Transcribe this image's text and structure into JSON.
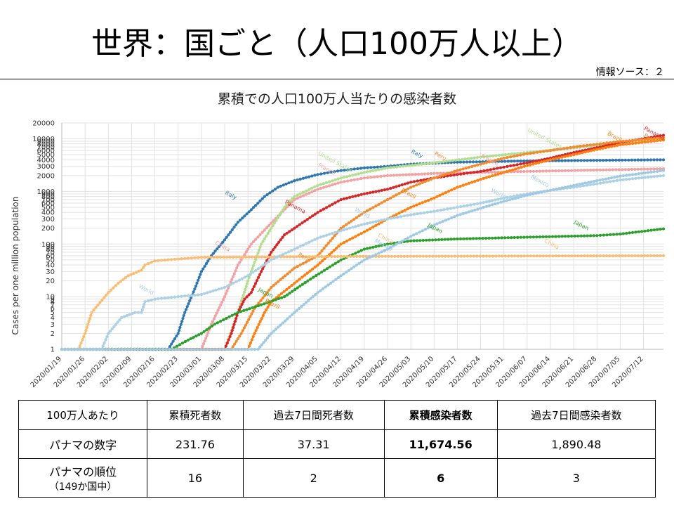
{
  "slide": {
    "title": "世界：国ごと（人口100万人以上）",
    "source": "情報ソース：２"
  },
  "chart_data": {
    "type": "line",
    "title": "累積での人口100万人当たりの感染者数",
    "xlabel": "",
    "ylabel": "Cases per one million population",
    "yscale": "log",
    "ylim": [
      1,
      20000
    ],
    "y_ticks": [
      1,
      2,
      3,
      4,
      5,
      6,
      7,
      8,
      9,
      10,
      20,
      30,
      40,
      50,
      60,
      70,
      80,
      90,
      100,
      200,
      300,
      400,
      500,
      600,
      700,
      800,
      900,
      1000,
      2000,
      3000,
      4000,
      5000,
      6000,
      7000,
      8000,
      9000,
      10000,
      20000
    ],
    "x_range": [
      "2020/01/19",
      "2020/07/18"
    ],
    "x_ticks": [
      "2020/01/19",
      "2020/01/26",
      "2020/02/02",
      "2020/02/09",
      "2020/02/16",
      "2020/02/23",
      "2020/03/01",
      "2020/03/08",
      "2020/03/15",
      "2020/03/22",
      "2020/03/29",
      "2020/04/05",
      "2020/04/12",
      "2020/04/19",
      "2020/04/26",
      "2020/05/03",
      "2020/05/10",
      "2020/05/17",
      "2020/05/24",
      "2020/05/31",
      "2020/06/07",
      "2020/06/14",
      "2020/06/21",
      "2020/06/28",
      "2020/07/05",
      "2020/07/12"
    ],
    "grid": true,
    "series": [
      {
        "name": "Italy",
        "color": "#2f77b0",
        "points": [
          [
            "2020/01/19",
            1
          ],
          [
            "2020/02/20",
            1
          ],
          [
            "2020/02/23",
            2
          ],
          [
            "2020/02/25",
            5
          ],
          [
            "2020/02/28",
            14
          ],
          [
            "2020/03/01",
            30
          ],
          [
            "2020/03/04",
            60
          ],
          [
            "2020/03/08",
            120
          ],
          [
            "2020/03/12",
            260
          ],
          [
            "2020/03/16",
            450
          ],
          [
            "2020/03/20",
            800
          ],
          [
            "2020/03/24",
            1200
          ],
          [
            "2020/03/29",
            1600
          ],
          [
            "2020/04/05",
            2100
          ],
          [
            "2020/04/12",
            2500
          ],
          [
            "2020/04/19",
            2800
          ],
          [
            "2020/04/26",
            3000
          ],
          [
            "2020/05/03",
            3300
          ],
          [
            "2020/05/17",
            3600
          ],
          [
            "2020/06/07",
            3800
          ],
          [
            "2020/07/18",
            4000
          ]
        ],
        "labels": [
          {
            "text": "Italy",
            "x": "2020/03/08",
            "y": 900
          },
          {
            "text": "Italy",
            "x": "2020/05/03",
            "y": 5500
          }
        ]
      },
      {
        "name": "France",
        "color": "#f2a2a2",
        "points": [
          [
            "2020/01/19",
            1
          ],
          [
            "2020/03/01",
            1
          ],
          [
            "2020/03/04",
            3
          ],
          [
            "2020/03/08",
            10
          ],
          [
            "2020/03/12",
            40
          ],
          [
            "2020/03/16",
            100
          ],
          [
            "2020/03/22",
            250
          ],
          [
            "2020/03/29",
            700
          ],
          [
            "2020/04/05",
            1100
          ],
          [
            "2020/04/12",
            1500
          ],
          [
            "2020/04/19",
            1800
          ],
          [
            "2020/04/26",
            2000
          ],
          [
            "2020/05/10",
            2200
          ],
          [
            "2020/06/07",
            2400
          ],
          [
            "2020/07/18",
            2700
          ]
        ],
        "labels": [
          {
            "text": "China",
            "x": "2020/03/05",
            "y": 100
          },
          {
            "text": "France",
            "x": "2020/04/05",
            "y": 3000
          },
          {
            "text": "France",
            "x": "2020/05/24",
            "y": 4500
          }
        ]
      },
      {
        "name": "United States",
        "color": "#b3dd8f",
        "points": [
          [
            "2020/01/19",
            1
          ],
          [
            "2020/03/08",
            1
          ],
          [
            "2020/03/12",
            5
          ],
          [
            "2020/03/15",
            20
          ],
          [
            "2020/03/19",
            100
          ],
          [
            "2020/03/22",
            200
          ],
          [
            "2020/03/26",
            500
          ],
          [
            "2020/03/29",
            800
          ],
          [
            "2020/04/05",
            1300
          ],
          [
            "2020/04/12",
            1800
          ],
          [
            "2020/04/19",
            2300
          ],
          [
            "2020/04/26",
            2800
          ],
          [
            "2020/05/10",
            3500
          ],
          [
            "2020/05/24",
            4500
          ],
          [
            "2020/06/07",
            5500
          ],
          [
            "2020/06/21",
            6700
          ],
          [
            "2020/07/05",
            8500
          ],
          [
            "2020/07/18",
            10500
          ]
        ],
        "labels": [
          {
            "text": "United States",
            "x": "2020/04/05",
            "y": 5000
          },
          {
            "text": "United States",
            "x": "2020/06/07",
            "y": 14000
          }
        ]
      },
      {
        "name": "Panama",
        "color": "#d62728",
        "points": [
          [
            "2020/01/19",
            1
          ],
          [
            "2020/03/08",
            1
          ],
          [
            "2020/03/10",
            2
          ],
          [
            "2020/03/12",
            5
          ],
          [
            "2020/03/14",
            9
          ],
          [
            "2020/03/16",
            12
          ],
          [
            "2020/03/19",
            30
          ],
          [
            "2020/03/22",
            70
          ],
          [
            "2020/03/26",
            150
          ],
          [
            "2020/03/29",
            200
          ],
          [
            "2020/04/05",
            400
          ],
          [
            "2020/04/12",
            700
          ],
          [
            "2020/04/19",
            900
          ],
          [
            "2020/04/26",
            1100
          ],
          [
            "2020/05/03",
            1500
          ],
          [
            "2020/05/10",
            1800
          ],
          [
            "2020/05/17",
            2100
          ],
          [
            "2020/05/24",
            2400
          ],
          [
            "2020/05/31",
            2900
          ],
          [
            "2020/06/07",
            3500
          ],
          [
            "2020/06/14",
            4300
          ],
          [
            "2020/06/21",
            5500
          ],
          [
            "2020/06/28",
            6800
          ],
          [
            "2020/07/05",
            8500
          ],
          [
            "2020/07/18",
            11674.56
          ]
        ],
        "labels": [
          {
            "text": "Panama",
            "x": "2020/03/26",
            "y": 600
          },
          {
            "text": "Panama",
            "x": "2020/07/12",
            "y": 15000
          }
        ]
      },
      {
        "name": "Brazil",
        "color": "#ff7f0e",
        "points": [
          [
            "2020/01/19",
            1
          ],
          [
            "2020/03/15",
            1
          ],
          [
            "2020/03/17",
            2
          ],
          [
            "2020/03/20",
            5
          ],
          [
            "2020/03/22",
            8
          ],
          [
            "2020/03/29",
            18
          ],
          [
            "2020/04/05",
            40
          ],
          [
            "2020/04/12",
            100
          ],
          [
            "2020/04/19",
            170
          ],
          [
            "2020/04/26",
            300
          ],
          [
            "2020/05/03",
            500
          ],
          [
            "2020/05/10",
            750
          ],
          [
            "2020/05/17",
            1200
          ],
          [
            "2020/05/24",
            1700
          ],
          [
            "2020/05/31",
            2300
          ],
          [
            "2020/06/07",
            3100
          ],
          [
            "2020/06/14",
            4000
          ],
          [
            "2020/06/21",
            5000
          ],
          [
            "2020/06/28",
            6300
          ],
          [
            "2020/07/05",
            7700
          ],
          [
            "2020/07/18",
            9500
          ]
        ],
        "labels": [
          {
            "text": "Brazil",
            "x": "2020/03/20",
            "y": 8
          },
          {
            "text": "Brazil",
            "x": "2020/04/30",
            "y": 1000
          },
          {
            "text": "Brazil",
            "x": "2020/07/01",
            "y": 12000
          }
        ]
      },
      {
        "name": "Peru",
        "color": "#f28a2e",
        "points": [
          [
            "2020/01/19",
            1
          ],
          [
            "2020/03/10",
            1
          ],
          [
            "2020/03/13",
            2
          ],
          [
            "2020/03/17",
            6
          ],
          [
            "2020/03/22",
            15
          ],
          [
            "2020/03/29",
            35
          ],
          [
            "2020/04/05",
            60
          ],
          [
            "2020/04/12",
            200
          ],
          [
            "2020/04/19",
            400
          ],
          [
            "2020/04/26",
            700
          ],
          [
            "2020/05/03",
            1200
          ],
          [
            "2020/05/10",
            1800
          ],
          [
            "2020/05/17",
            2500
          ],
          [
            "2020/05/24",
            3300
          ],
          [
            "2020/05/31",
            4300
          ],
          [
            "2020/06/07",
            5200
          ],
          [
            "2020/06/14",
            6000
          ],
          [
            "2020/06/21",
            7000
          ],
          [
            "2020/06/28",
            7900
          ],
          [
            "2020/07/05",
            8900
          ],
          [
            "2020/07/18",
            10500
          ]
        ],
        "labels": [
          {
            "text": "Peru",
            "x": "2020/03/30",
            "y": 60
          },
          {
            "text": "Peru",
            "x": "2020/07/12",
            "y": 11000
          },
          {
            "text": "Peru",
            "x": "2020/05/10",
            "y": 5000
          }
        ]
      },
      {
        "name": "Japan",
        "color": "#2ca02c",
        "points": [
          [
            "2020/01/19",
            1
          ],
          [
            "2020/02/21",
            1
          ],
          [
            "2020/02/26",
            1.5
          ],
          [
            "2020/03/01",
            2
          ],
          [
            "2020/03/05",
            3
          ],
          [
            "2020/03/12",
            5
          ],
          [
            "2020/03/19",
            7
          ],
          [
            "2020/03/26",
            10
          ],
          [
            "2020/04/02",
            20
          ],
          [
            "2020/04/12",
            50
          ],
          [
            "2020/04/19",
            80
          ],
          [
            "2020/04/26",
            100
          ],
          [
            "2020/05/03",
            115
          ],
          [
            "2020/05/17",
            125
          ],
          [
            "2020/06/07",
            135
          ],
          [
            "2020/06/28",
            145
          ],
          [
            "2020/07/05",
            155
          ],
          [
            "2020/07/18",
            195
          ]
        ],
        "labels": [
          {
            "text": "Japan",
            "x": "2020/03/18",
            "y": 13
          },
          {
            "text": "Japan",
            "x": "2020/05/08",
            "y": 220
          },
          {
            "text": "Japan",
            "x": "2020/06/21",
            "y": 250
          }
        ]
      },
      {
        "name": "China",
        "color": "#f9bd73",
        "points": [
          [
            "2020/01/19",
            1
          ],
          [
            "2020/01/24",
            1
          ],
          [
            "2020/01/26",
            2
          ],
          [
            "2020/01/28",
            5
          ],
          [
            "2020/02/02",
            12
          ],
          [
            "2020/02/05",
            18
          ],
          [
            "2020/02/08",
            25
          ],
          [
            "2020/02/12",
            32
          ],
          [
            "2020/02/13",
            40
          ],
          [
            "2020/02/16",
            48
          ],
          [
            "2020/02/23",
            52
          ],
          [
            "2020/03/01",
            56
          ],
          [
            "2020/04/12",
            58
          ],
          [
            "2020/07/18",
            60
          ]
        ],
        "labels": [
          {
            "text": "China",
            "x": "2020/04/23",
            "y": 140
          },
          {
            "text": "China",
            "x": "2020/06/12",
            "y": 110
          }
        ]
      },
      {
        "name": "World",
        "color": "#acd0e4",
        "points": [
          [
            "2020/01/19",
            1
          ],
          [
            "2020/01/31",
            1
          ],
          [
            "2020/02/02",
            2
          ],
          [
            "2020/02/06",
            4
          ],
          [
            "2020/02/10",
            5
          ],
          [
            "2020/02/12",
            5
          ],
          [
            "2020/02/13",
            8
          ],
          [
            "2020/02/16",
            9
          ],
          [
            "2020/02/23",
            10
          ],
          [
            "2020/03/01",
            11
          ],
          [
            "2020/03/08",
            15
          ],
          [
            "2020/03/15",
            25
          ],
          [
            "2020/03/22",
            50
          ],
          [
            "2020/03/29",
            80
          ],
          [
            "2020/04/05",
            130
          ],
          [
            "2020/04/12",
            180
          ],
          [
            "2020/04/19",
            240
          ],
          [
            "2020/04/26",
            300
          ],
          [
            "2020/05/03",
            360
          ],
          [
            "2020/05/10",
            420
          ],
          [
            "2020/05/17",
            500
          ],
          [
            "2020/05/24",
            600
          ],
          [
            "2020/05/31",
            750
          ],
          [
            "2020/06/07",
            900
          ],
          [
            "2020/06/14",
            1050
          ],
          [
            "2020/06/21",
            1200
          ],
          [
            "2020/06/28",
            1400
          ],
          [
            "2020/07/05",
            1650
          ],
          [
            "2020/07/18",
            2000
          ]
        ],
        "labels": [
          {
            "text": "World",
            "x": "2020/02/11",
            "y": 15
          },
          {
            "text": "World",
            "x": "2020/04/16",
            "y": 430
          },
          {
            "text": "World",
            "x": "2020/05/27",
            "y": 1000
          }
        ]
      },
      {
        "name": "Mexico",
        "color": "#9fc9e3",
        "points": [
          [
            "2020/01/19",
            1
          ],
          [
            "2020/03/18",
            1
          ],
          [
            "2020/03/22",
            2
          ],
          [
            "2020/03/29",
            5
          ],
          [
            "2020/04/05",
            12
          ],
          [
            "2020/04/12",
            25
          ],
          [
            "2020/04/19",
            50
          ],
          [
            "2020/04/26",
            80
          ],
          [
            "2020/05/03",
            140
          ],
          [
            "2020/05/10",
            230
          ],
          [
            "2020/05/17",
            350
          ],
          [
            "2020/05/24",
            480
          ],
          [
            "2020/05/31",
            650
          ],
          [
            "2020/06/07",
            850
          ],
          [
            "2020/06/14",
            1050
          ],
          [
            "2020/06/21",
            1300
          ],
          [
            "2020/06/28",
            1600
          ],
          [
            "2020/07/05",
            1950
          ],
          [
            "2020/07/18",
            2500
          ]
        ],
        "labels": [
          {
            "text": "Mexico",
            "x": "2020/04/22",
            "y": 110
          },
          {
            "text": "Mexico",
            "x": "2020/06/08",
            "y": 1800
          }
        ]
      }
    ]
  },
  "table": {
    "rows": [
      [
        "100万人あたり",
        "累積死者数",
        "過去7日間死者数",
        "累積感染者数",
        "過去7日間感染者数"
      ],
      [
        "パナマの数字",
        "231.76",
        "37.31",
        "11,674.56",
        "1,890.48"
      ],
      [
        "パナマの順位",
        "16",
        "2",
        "6",
        "3"
      ]
    ],
    "rank_note": "（149か国中）"
  }
}
